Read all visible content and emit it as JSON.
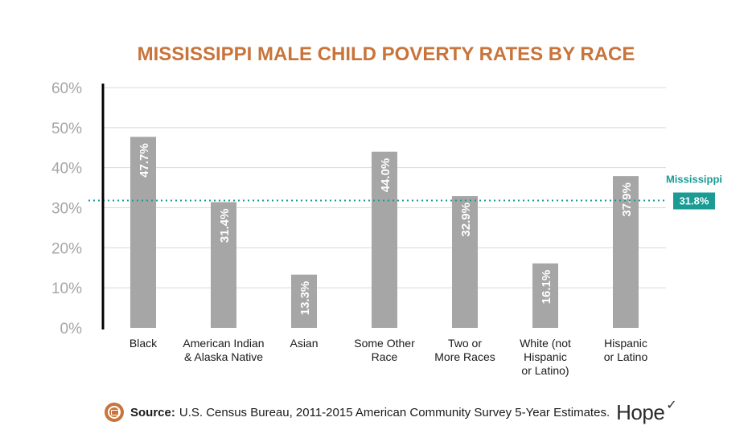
{
  "chart_data": {
    "type": "bar",
    "title": "MISSISSIPPI MALE CHILD POVERTY RATES BY RACE",
    "categories": [
      [
        "Black"
      ],
      [
        "American Indian",
        "& Alaska Native"
      ],
      [
        "Asian"
      ],
      [
        "Some Other",
        "Race"
      ],
      [
        "Two or",
        "More Races"
      ],
      [
        "White (not",
        "Hispanic",
        "or Latino)"
      ],
      [
        "Hispanic",
        "or Latino"
      ]
    ],
    "values": [
      47.7,
      31.4,
      13.3,
      44.0,
      32.9,
      16.1,
      37.9
    ],
    "value_labels": [
      "47.7%",
      "31.4%",
      "13.3%",
      "44.0%",
      "32.9%",
      "16.1%",
      "37.9%"
    ],
    "ylim": [
      0,
      60
    ],
    "yticks": [
      0,
      10,
      20,
      30,
      40,
      50,
      60
    ],
    "ytick_labels": [
      "0%",
      "10%",
      "20%",
      "30%",
      "40%",
      "50%",
      "60%"
    ],
    "grid": true,
    "reference_line": {
      "name": "Mississippi",
      "value": 31.8,
      "label": "31.8%"
    },
    "colors": {
      "bar": "#a6a6a6",
      "grid": "#d9d9d9",
      "axis": "#000000",
      "title": "#c8743a",
      "reference": "#1a9b95"
    }
  },
  "footer": {
    "icon": "monitor-icon",
    "source_label": "Source:",
    "source_text": "U.S. Census Bureau, 2011-2015 American Community Survey 5-Year Estimates.",
    "logo_text": "Hope",
    "logo_icon": "bird-icon"
  }
}
